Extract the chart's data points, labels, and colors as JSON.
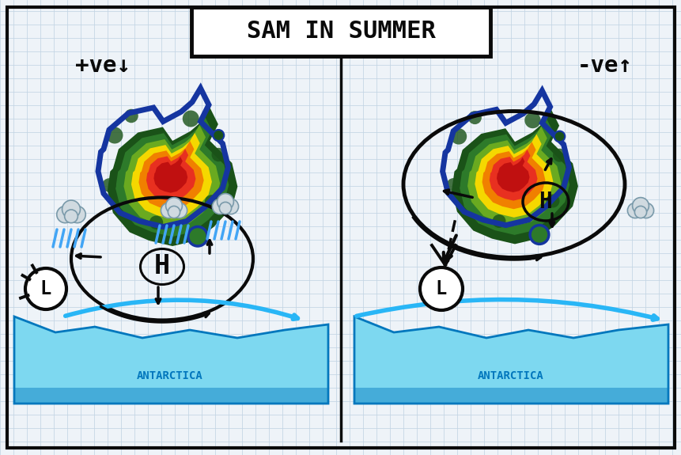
{
  "title": "SAM IN SUMMER",
  "bg_color": "#eef3f8",
  "grid_color": "#c2d4e4",
  "colors": {
    "aus_blue": "#1535a0",
    "dark_green": "#1a5218",
    "mid_green": "#2d7a2a",
    "lime": "#6aaa20",
    "yellow": "#f5d800",
    "orange": "#f08000",
    "red_orange": "#e83020",
    "deep_red": "#c01010",
    "ice_light": "#7dd8f0",
    "ice_med": "#29b6f6",
    "ice_dark": "#0277bd",
    "cloud_fill": "#d0dae0",
    "cloud_edge": "#7a9aaa",
    "rain_blue": "#42a5f5",
    "black": "#0a0a0a",
    "white": "#ffffff",
    "olive": "#8a8a20",
    "gold": "#d4aa00"
  },
  "left_label": "+ve↓",
  "right_label": "-ve↑",
  "antarctica": "ANTARCTICA"
}
